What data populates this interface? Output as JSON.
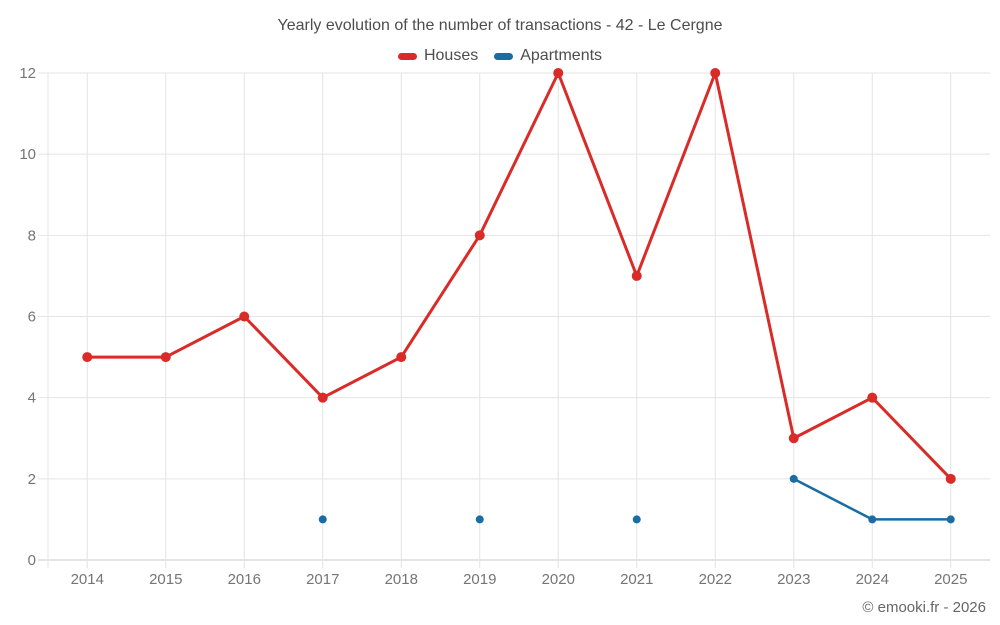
{
  "title": "Yearly evolution of the number of transactions - 42 - Le Cergne",
  "copyright": "© emooki.fr - 2026",
  "colors": {
    "houses": "#d92b28",
    "apartments": "#1a6ca4",
    "grid": "#e4e4e4",
    "axis_line": "#c9c9c9",
    "title_text": "#4d4d4d",
    "axis_text": "#757575",
    "copyright_text": "#666666",
    "background": "#ffffff"
  },
  "chart_data": {
    "type": "line",
    "title": "Yearly evolution of the number of transactions - 42 - Le Cergne",
    "categories": [
      "2014",
      "2015",
      "2016",
      "2017",
      "2018",
      "2019",
      "2020",
      "2021",
      "2022",
      "2023",
      "2024",
      "2025"
    ],
    "series": [
      {
        "name": "Houses",
        "color": "#d92b28",
        "values": [
          5,
          5,
          6,
          4,
          5,
          8,
          12,
          7,
          12,
          3,
          4,
          2
        ]
      },
      {
        "name": "Apartments",
        "color": "#1a6ca4",
        "values": [
          null,
          null,
          null,
          1,
          null,
          1,
          null,
          1,
          null,
          2,
          1,
          1
        ]
      }
    ],
    "xlabel": "",
    "ylabel": "",
    "ylim": [
      0,
      12
    ],
    "y_ticks": [
      0,
      2,
      4,
      6,
      8,
      10,
      12
    ],
    "grid": true,
    "legend_position": "top"
  }
}
